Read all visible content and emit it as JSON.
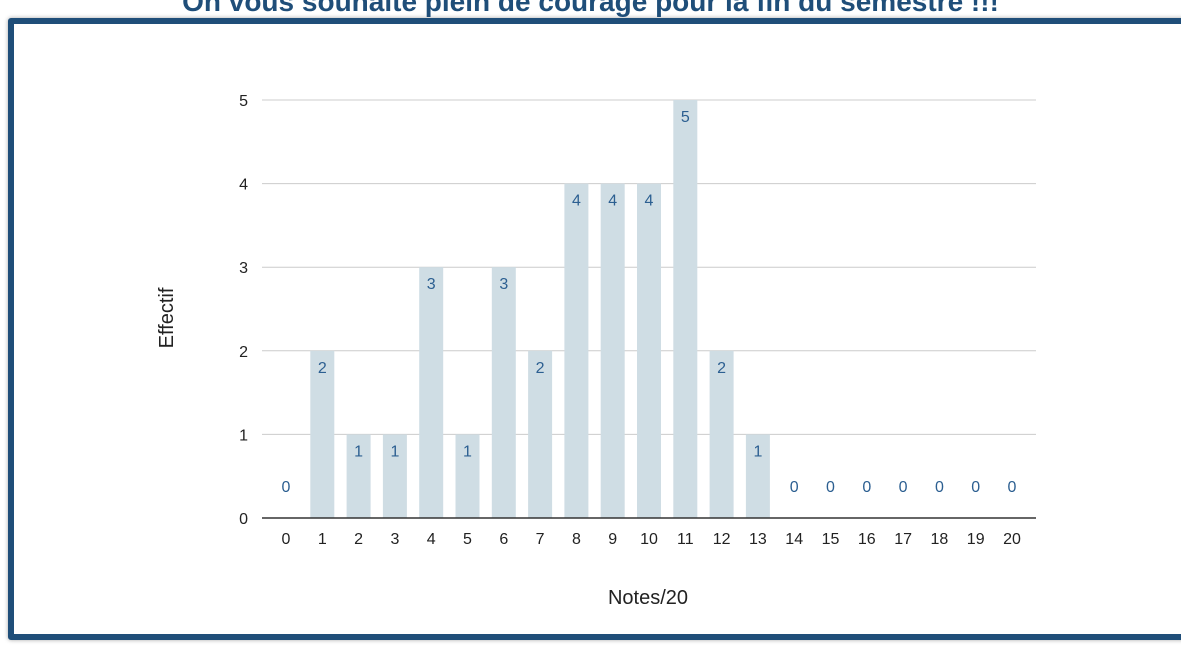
{
  "page": {
    "title": "On vous souhaite plein de courage pour la fin du semestre !!!"
  },
  "colors": {
    "frame": "#1f4e79",
    "title": "#1f4e79",
    "bar": "#cfdde4",
    "data_label": "#2c5f91",
    "gridline": "#cccccc",
    "axis": "#333333",
    "text": "#222222"
  },
  "chart_data": {
    "type": "bar",
    "title": "",
    "xlabel": "Notes/20",
    "ylabel": "Effectif",
    "categories": [
      "0",
      "1",
      "2",
      "3",
      "4",
      "5",
      "6",
      "7",
      "8",
      "9",
      "10",
      "11",
      "12",
      "13",
      "14",
      "15",
      "16",
      "17",
      "18",
      "19",
      "20"
    ],
    "series": [
      {
        "values": [
          0,
          2,
          1,
          1,
          3,
          1,
          3,
          2,
          4,
          4,
          4,
          5,
          2,
          1,
          0,
          0,
          0,
          0,
          0,
          0,
          0
        ]
      }
    ],
    "ylim": [
      0,
      5
    ],
    "yticks": [
      0,
      1,
      2,
      3,
      4,
      5
    ],
    "grid": true,
    "legend": "none",
    "data_labels": true
  }
}
